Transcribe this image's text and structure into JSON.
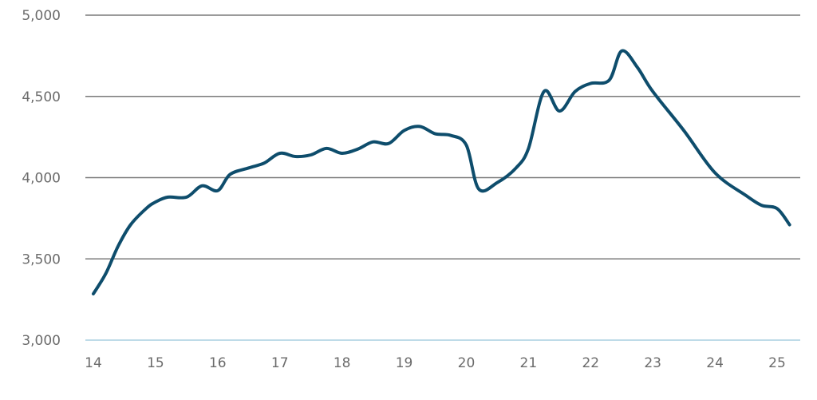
{
  "chart_data": {
    "type": "line",
    "title": "",
    "xlabel": "",
    "ylabel": "",
    "xlim": [
      14,
      25.3
    ],
    "ylim": [
      3000,
      5000
    ],
    "grid": "horizontal",
    "x_ticks": [
      {
        "value": 14,
        "label": "14"
      },
      {
        "value": 15,
        "label": "15"
      },
      {
        "value": 16,
        "label": "16"
      },
      {
        "value": 17,
        "label": "17"
      },
      {
        "value": 18,
        "label": "18"
      },
      {
        "value": 19,
        "label": "19"
      },
      {
        "value": 20,
        "label": "20"
      },
      {
        "value": 21,
        "label": "21"
      },
      {
        "value": 22,
        "label": "22"
      },
      {
        "value": 23,
        "label": "23"
      },
      {
        "value": 24,
        "label": "24"
      },
      {
        "value": 25,
        "label": "25"
      }
    ],
    "y_ticks": [
      {
        "value": 3000,
        "label": "3,000"
      },
      {
        "value": 3500,
        "label": "3,500"
      },
      {
        "value": 4000,
        "label": "4,000"
      },
      {
        "value": 4500,
        "label": "4,500"
      },
      {
        "value": 5000,
        "label": "5,000"
      }
    ],
    "series": [
      {
        "color": "#0e4d6c",
        "x": [
          14.0,
          14.2,
          14.4,
          14.6,
          14.85,
          15.0,
          15.2,
          15.5,
          15.75,
          16.0,
          16.2,
          16.5,
          16.75,
          17.0,
          17.25,
          17.5,
          17.75,
          18.0,
          18.25,
          18.5,
          18.75,
          19.0,
          19.25,
          19.5,
          19.75,
          20.0,
          20.2,
          20.5,
          20.8,
          21.0,
          21.25,
          21.5,
          21.75,
          22.0,
          22.3,
          22.5,
          22.75,
          23.0,
          23.5,
          24.0,
          24.5,
          24.75,
          25.0,
          25.2
        ],
        "y": [
          3285,
          3410,
          3580,
          3710,
          3810,
          3850,
          3880,
          3880,
          3950,
          3920,
          4020,
          4060,
          4090,
          4150,
          4130,
          4140,
          4180,
          4150,
          4175,
          4220,
          4210,
          4290,
          4315,
          4270,
          4260,
          4200,
          3930,
          3970,
          4060,
          4180,
          4530,
          4410,
          4530,
          4580,
          4600,
          4780,
          4680,
          4530,
          4290,
          4030,
          3890,
          3830,
          3810,
          3710
        ]
      }
    ]
  }
}
